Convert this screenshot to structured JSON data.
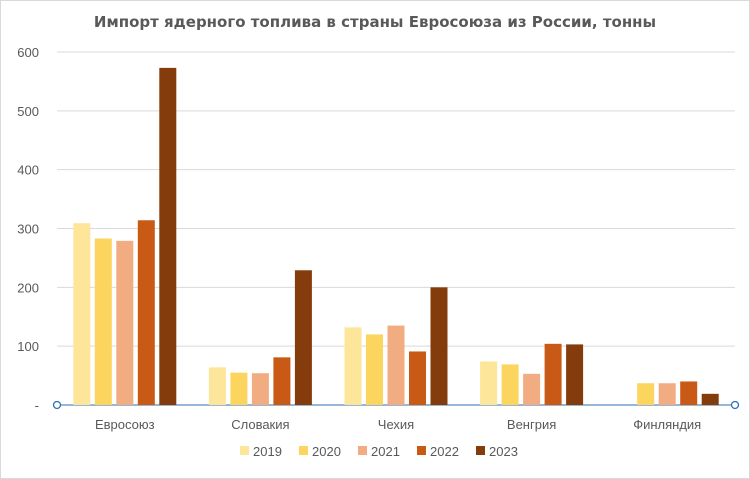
{
  "chart_data": {
    "type": "bar",
    "title": "Импорт ядерного топлива в страны Евросоюза из России, тонны",
    "categories": [
      "Евросоюз",
      "Словакия",
      "Чехия",
      "Венгрия",
      "Финляндия"
    ],
    "series": [
      {
        "name": "2019",
        "color": "#fde699",
        "values": [
          309,
          64,
          null,
          74,
          null
        ]
      },
      {
        "name": "2020",
        "color": "#fcd55f",
        "values": [
          283,
          55,
          null,
          69,
          37
        ]
      },
      {
        "name": "2021",
        "color": "#f2ac82",
        "values": [
          279,
          54,
          null,
          53,
          37
        ]
      },
      {
        "name": "2022",
        "color": "#c95a16",
        "values": [
          314,
          81,
          null,
          104,
          40
        ]
      },
      {
        "name": "2023",
        "color": "#843c0c",
        "values": [
          573,
          229,
          null,
          103,
          19
        ]
      }
    ],
    "czech_values": [
      132,
      120,
      135,
      91,
      200
    ],
    "ylim": [
      0,
      600
    ],
    "yticks": [
      "-",
      "100",
      "200",
      "300",
      "400",
      "500",
      "600"
    ],
    "grid": true,
    "legend": "bottom"
  }
}
